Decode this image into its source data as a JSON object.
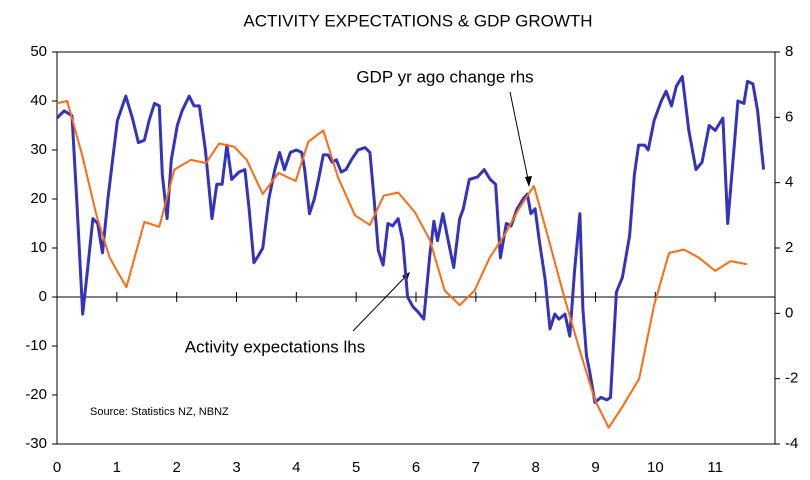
{
  "chart_data": {
    "type": "line",
    "title": "ACTIVITY EXPECTATIONS & GDP GROWTH",
    "source": "Source: Statistics NZ, NBNZ",
    "xlim": [
      0,
      12
    ],
    "xticks": [
      0,
      1,
      2,
      3,
      4,
      5,
      6,
      7,
      8,
      9,
      10,
      11
    ],
    "ylim": [
      -30,
      50
    ],
    "yticks": [
      -30,
      -20,
      -10,
      0,
      10,
      20,
      30,
      40,
      50
    ],
    "y2lim": [
      -4,
      8
    ],
    "y2ticks": [
      -4,
      -2,
      0,
      2,
      4,
      6,
      8
    ],
    "series": [
      {
        "name": "Activity expectations lhs",
        "color": "#3333bb",
        "x": [
          0,
          0.12,
          0.25,
          0.33,
          0.43,
          0.51,
          0.6,
          0.68,
          0.76,
          0.85,
          0.93,
          1.01,
          1.15,
          1.26,
          1.36,
          1.46,
          1.54,
          1.63,
          1.71,
          1.76,
          1.84,
          1.91,
          2.01,
          2.09,
          2.21,
          2.29,
          2.38,
          2.48,
          2.59,
          2.67,
          2.76,
          2.84,
          2.92,
          3.04,
          3.14,
          3.21,
          3.29,
          3.37,
          3.44,
          3.54,
          3.64,
          3.72,
          3.8,
          3.9,
          4.0,
          4.09,
          4.14,
          4.22,
          4.3,
          4.37,
          4.45,
          4.53,
          4.6,
          4.67,
          4.75,
          4.83,
          4.92,
          5.03,
          5.15,
          5.23,
          5.3,
          5.37,
          5.45,
          5.53,
          5.61,
          5.7,
          5.78,
          5.86,
          5.95,
          6.03,
          6.13,
          6.23,
          6.3,
          6.36,
          6.45,
          6.53,
          6.63,
          6.73,
          6.79,
          6.89,
          7.03,
          7.14,
          7.24,
          7.33,
          7.41,
          7.51,
          7.59,
          7.69,
          7.79,
          7.86,
          7.92,
          7.99,
          8.06,
          8.16,
          8.24,
          8.32,
          8.39,
          8.49,
          8.57,
          8.65,
          8.74,
          8.79,
          8.85,
          8.9,
          8.99,
          9.09,
          9.19,
          9.25,
          9.35,
          9.45,
          9.57,
          9.65,
          9.72,
          9.82,
          9.88,
          9.98,
          10.1,
          10.18,
          10.27,
          10.35,
          10.45,
          10.56,
          10.68,
          10.78,
          10.9,
          11.0,
          11.13,
          11.21,
          11.3,
          11.38,
          11.48,
          11.54,
          11.63,
          11.71,
          11.81
        ],
        "values": [
          36.5,
          38,
          37,
          20,
          -3.5,
          5.5,
          16,
          15,
          9,
          20,
          28,
          36,
          41,
          36.5,
          31.5,
          32,
          36,
          39.5,
          39,
          25,
          16,
          28,
          35,
          38,
          41,
          39,
          39,
          30,
          16,
          23,
          23,
          31,
          24,
          25.5,
          26,
          18,
          7,
          8.5,
          10,
          20,
          26,
          29.5,
          26,
          29.5,
          30,
          29.5,
          26,
          17,
          20,
          24,
          29,
          29,
          27.5,
          28,
          25.5,
          26,
          28,
          30,
          30.5,
          29.5,
          20,
          9.5,
          6.5,
          15,
          14.5,
          16,
          11.5,
          0,
          -2,
          -3,
          -4.5,
          8.5,
          15.5,
          11.5,
          17,
          12,
          6,
          16,
          18,
          24,
          24.5,
          26,
          24,
          23,
          8,
          15,
          14.5,
          18,
          20,
          21,
          17,
          18,
          11.5,
          3.5,
          -6.5,
          -3.5,
          -4.5,
          -3.5,
          -8,
          5.5,
          17,
          -2.5,
          -12,
          -15,
          -21.5,
          -20.5,
          -21,
          -20.5,
          1,
          4,
          12.5,
          25,
          31,
          31,
          30,
          36,
          40,
          42,
          39,
          43,
          45,
          34,
          26,
          27.5,
          35,
          34,
          36.5,
          15,
          28,
          40,
          39.5,
          44,
          43.5,
          38,
          26
        ]
      },
      {
        "name": "GDP yr ago change rhs",
        "color": "#ff6a10",
        "axis": "y2",
        "x": [
          0,
          0.17,
          0.42,
          0.66,
          0.88,
          1.16,
          1.46,
          1.71,
          1.96,
          2.24,
          2.49,
          2.71,
          2.96,
          3.17,
          3.44,
          3.7,
          3.99,
          4.2,
          4.45,
          4.7,
          4.98,
          5.23,
          5.46,
          5.7,
          5.98,
          6.23,
          6.48,
          6.73,
          6.98,
          7.23,
          7.48,
          7.72,
          7.97,
          8.22,
          8.47,
          8.74,
          8.99,
          9.22,
          9.47,
          9.73,
          9.98,
          10.23,
          10.48,
          10.73,
          11.0,
          11.26,
          11.53
        ],
        "values": [
          6.43,
          6.5,
          4.85,
          3.0,
          1.7,
          0.8,
          2.8,
          2.65,
          4.4,
          4.7,
          4.6,
          5.2,
          5.1,
          4.7,
          3.65,
          4.3,
          4.05,
          5.25,
          5.6,
          4.15,
          3.0,
          2.7,
          3.6,
          3.7,
          3.1,
          2.25,
          0.7,
          0.25,
          0.7,
          1.7,
          2.4,
          3.2,
          3.9,
          2.25,
          0.55,
          -1.15,
          -2.65,
          -3.5,
          -2.8,
          -2.0,
          0.25,
          1.85,
          1.95,
          1.7,
          1.3,
          1.6,
          1.5
        ]
      }
    ]
  }
}
